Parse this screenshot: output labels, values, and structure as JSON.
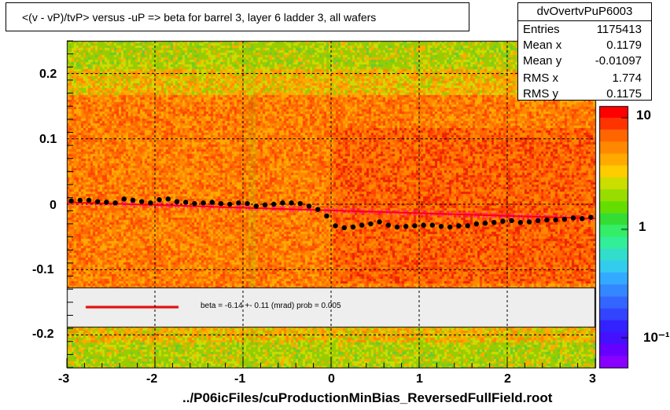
{
  "title": "<(v - vP)/tvP> versus  -uP => beta for barrel 3, layer 6 ladder 3, all wafers",
  "stats": {
    "name": "dvOvertvPuP6003",
    "rows": [
      {
        "label": "Entries",
        "value": "1175413"
      },
      {
        "label": "Mean x",
        "value": "0.1179"
      },
      {
        "label": "Mean y",
        "value": "-0.01097"
      },
      {
        "label": "RMS x",
        "value": "1.774"
      },
      {
        "label": "RMS y",
        "value": "0.1175"
      }
    ]
  },
  "legend": {
    "text": "beta =   -6.14 +-  0.11 (mrad) prob = 0.005",
    "line_color": "#dd0000"
  },
  "colors": {
    "profile_points": "#000000",
    "fit_line": "#ff0000",
    "overlay_points": "#ff00ff",
    "grid": "#000000"
  },
  "chart_data": {
    "type": "heatmap",
    "title": "<(v - vP)/tvP> versus  -uP => beta for barrel 3, layer 6 ladder 3, all wafers",
    "xlabel": "../P06icFiles/cuProductionMinBias_ReversedFullField.root",
    "ylabel": "",
    "xlim": [
      -3,
      3
    ],
    "ylim": [
      -0.25,
      0.25
    ],
    "x_ticks": [
      "-3",
      "-2",
      "-1",
      "0",
      "1",
      "2",
      "3"
    ],
    "y_ticks": [
      "-0.2",
      "-0.1",
      "0",
      "0.1",
      "0.2"
    ],
    "z_scale": "log",
    "z_ticks": [
      "10",
      "1",
      "10⁻¹"
    ],
    "grid": true,
    "profile_series": {
      "name": "",
      "x": [
        -2.95,
        -2.85,
        -2.75,
        -2.65,
        -2.55,
        -2.45,
        -2.35,
        -2.25,
        -2.15,
        -2.05,
        -1.95,
        -1.85,
        -1.75,
        -1.65,
        -1.55,
        -1.45,
        -1.35,
        -1.25,
        -1.15,
        -1.05,
        -0.95,
        -0.85,
        -0.75,
        -0.65,
        -0.55,
        -0.45,
        -0.35,
        -0.25,
        -0.15,
        -0.05,
        0.05,
        0.15,
        0.25,
        0.35,
        0.45,
        0.55,
        0.65,
        0.75,
        0.85,
        0.95,
        1.05,
        1.15,
        1.25,
        1.35,
        1.45,
        1.55,
        1.65,
        1.75,
        1.85,
        1.95,
        2.05,
        2.15,
        2.25,
        2.35,
        2.45,
        2.55,
        2.65,
        2.75,
        2.85,
        2.95
      ],
      "y": [
        0.005,
        0.006,
        0.006,
        0.004,
        0.003,
        0.002,
        0.008,
        0.006,
        0.004,
        0.002,
        0.007,
        0.008,
        0.004,
        0.003,
        0.001,
        0.002,
        0.003,
        0.001,
        0.0,
        0.002,
        0.001,
        -0.003,
        -0.001,
        0.0,
        0.002,
        0.002,
        0.001,
        -0.003,
        -0.008,
        -0.018,
        -0.033,
        -0.036,
        -0.035,
        -0.032,
        -0.03,
        -0.027,
        -0.032,
        -0.035,
        -0.034,
        -0.033,
        -0.032,
        -0.032,
        -0.034,
        -0.035,
        -0.033,
        -0.033,
        -0.03,
        -0.029,
        -0.028,
        -0.026,
        -0.025,
        -0.028,
        -0.027,
        -0.025,
        -0.024,
        -0.024,
        -0.023,
        -0.021,
        -0.022,
        -0.02
      ]
    },
    "fit_line": {
      "x": [
        -3,
        3
      ],
      "y": [
        0.003,
        -0.022
      ]
    },
    "legend": [
      {
        "label": "beta =   -6.14 +-  0.11 (mrad) prob = 0.005"
      }
    ]
  }
}
